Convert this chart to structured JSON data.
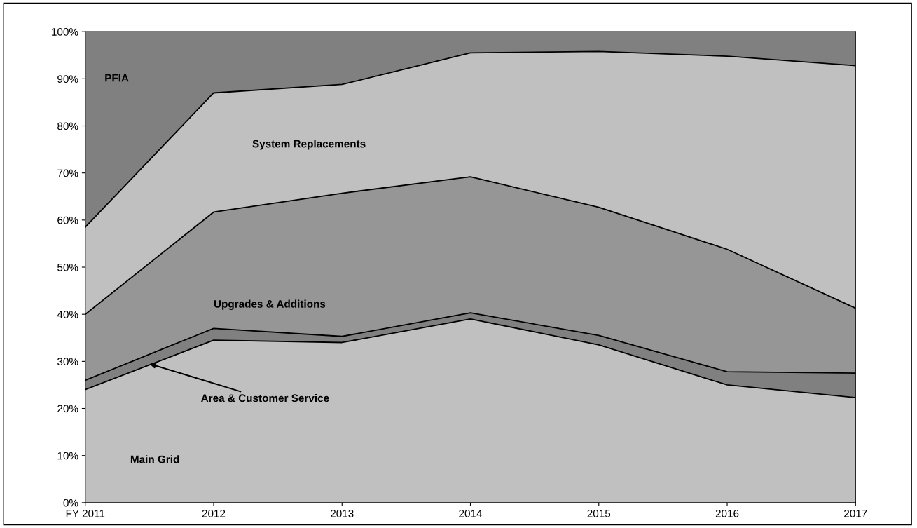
{
  "chart_data": {
    "type": "area",
    "stacked": true,
    "categories": [
      "FY 2011",
      "2012",
      "2013",
      "2014",
      "2015",
      "2016",
      "2017"
    ],
    "series": [
      {
        "name": "Main Grid",
        "color": "#c0c0c0",
        "values": [
          24,
          34.5,
          34,
          39,
          33.5,
          25,
          22.3
        ]
      },
      {
        "name": "Area & Customer Service",
        "color": "#808080",
        "values": [
          2,
          2.5,
          1.3,
          1.3,
          2,
          2.8,
          5.2
        ]
      },
      {
        "name": "Upgrades & Additions",
        "color": "#969696",
        "values": [
          14,
          24.7,
          30.4,
          28.9,
          27.2,
          26,
          13.8
        ]
      },
      {
        "name": "System Replacements",
        "color": "#c0c0c0",
        "values": [
          18.5,
          25.3,
          23.1,
          26.3,
          33.1,
          41,
          51.5
        ]
      },
      {
        "name": "PFIA",
        "color": "#808080",
        "values": [
          41.5,
          13,
          11.2,
          4.5,
          4.2,
          5.2,
          7.2
        ]
      }
    ],
    "ylim": [
      0,
      100
    ],
    "yticks": [
      {
        "value": 0,
        "label": "0%"
      },
      {
        "value": 10,
        "label": "10%"
      },
      {
        "value": 20,
        "label": "20%"
      },
      {
        "value": 30,
        "label": "30%"
      },
      {
        "value": 40,
        "label": "40%"
      },
      {
        "value": 50,
        "label": "50%"
      },
      {
        "value": 60,
        "label": "60%"
      },
      {
        "value": 70,
        "label": "70%"
      },
      {
        "value": 80,
        "label": "80%"
      },
      {
        "value": 90,
        "label": "90%"
      },
      {
        "value": 100,
        "label": "100%"
      }
    ],
    "grid": false,
    "legend": false
  }
}
